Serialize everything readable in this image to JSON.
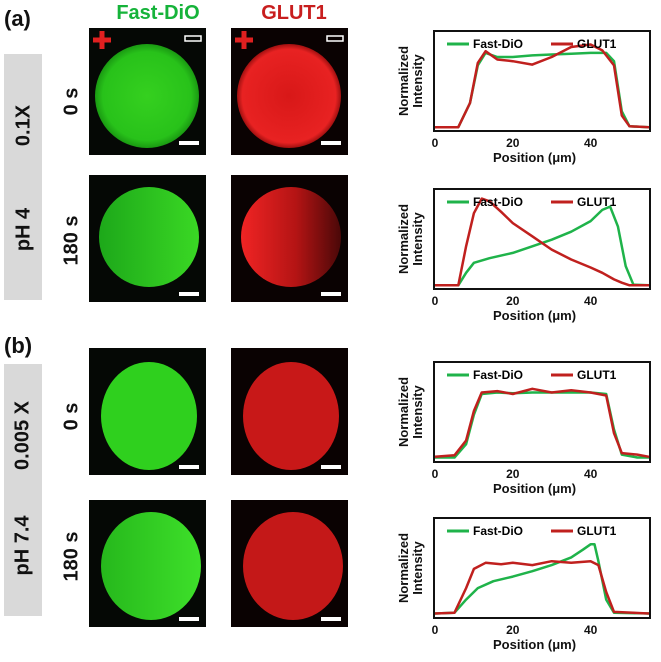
{
  "panels": [
    {
      "letter": "(a)",
      "condition_ph": "pH 4",
      "condition_conc": "0.1X",
      "rows": [
        {
          "time": "0 s"
        },
        {
          "time": "180 s"
        }
      ]
    },
    {
      "letter": "(b)",
      "condition_ph": "pH 7.4",
      "condition_conc": "0.005 X",
      "rows": [
        {
          "time": "0 s"
        },
        {
          "time": "180 s"
        }
      ]
    }
  ],
  "columns": {
    "green": "Fast-DiO",
    "red": "GLUT1"
  },
  "colors": {
    "green": "#1fb34a",
    "red": "#c0201e",
    "green_img": "#22c51e",
    "red_img": "#e01818"
  },
  "chart_data": [
    {
      "type": "line",
      "ylabel": "Normalized Intensity",
      "xlabel": "Position (μm)",
      "xticks": [
        "0",
        "20",
        "40"
      ],
      "xlim": [
        0,
        55
      ],
      "ylim": [
        0,
        1.15
      ],
      "legend": "top",
      "series": [
        {
          "name": "Fast-DiO",
          "x": [
            0,
            6,
            9,
            11,
            13,
            16,
            20,
            25,
            30,
            35,
            40,
            44,
            46,
            48,
            50,
            55
          ],
          "y": [
            0.01,
            0.01,
            0.3,
            0.75,
            0.9,
            0.85,
            0.85,
            0.87,
            0.88,
            0.89,
            0.9,
            0.9,
            0.8,
            0.2,
            0.02,
            0.01
          ]
        },
        {
          "name": "GLUT1",
          "x": [
            0,
            6,
            9,
            11,
            13,
            16,
            20,
            25,
            30,
            35,
            40,
            43,
            46,
            48,
            50,
            55
          ],
          "y": [
            0.01,
            0.01,
            0.3,
            0.78,
            0.92,
            0.82,
            0.8,
            0.76,
            0.85,
            0.97,
            1.0,
            0.93,
            0.75,
            0.15,
            0.02,
            0.01
          ]
        }
      ]
    },
    {
      "type": "line",
      "ylabel": "Normalized Intensity",
      "xlabel": "Position (μm)",
      "xticks": [
        "0",
        "20",
        "40"
      ],
      "xlim": [
        0,
        55
      ],
      "ylim": [
        0,
        1.45
      ],
      "legend": "top",
      "series": [
        {
          "name": "Fast-DiO",
          "x": [
            0,
            6,
            8,
            10,
            14,
            20,
            25,
            30,
            35,
            40,
            43,
            45,
            47,
            49,
            51,
            55
          ],
          "y": [
            0.01,
            0.01,
            0.2,
            0.35,
            0.42,
            0.5,
            0.6,
            0.7,
            0.82,
            0.98,
            1.15,
            1.2,
            0.9,
            0.3,
            0.02,
            0.01
          ]
        },
        {
          "name": "GLUT1",
          "x": [
            0,
            6,
            8,
            10,
            12,
            14,
            17,
            20,
            25,
            30,
            35,
            40,
            43,
            46,
            48,
            50,
            55
          ],
          "y": [
            0.01,
            0.01,
            0.6,
            1.1,
            1.32,
            1.28,
            1.12,
            0.95,
            0.75,
            0.55,
            0.4,
            0.28,
            0.2,
            0.1,
            0.05,
            0.01,
            0.01
          ]
        }
      ]
    },
    {
      "type": "line",
      "ylabel": "Normalized Intensity",
      "xlabel": "Position (μm)",
      "xticks": [
        "0",
        "20",
        "40"
      ],
      "xlim": [
        0,
        55
      ],
      "ylim": [
        0,
        1.3
      ],
      "legend": "top",
      "series": [
        {
          "name": "Fast-DiO",
          "x": [
            0,
            5,
            8,
            10,
            12,
            16,
            20,
            25,
            30,
            35,
            40,
            44,
            46,
            48,
            52,
            55
          ],
          "y": [
            0.02,
            0.02,
            0.2,
            0.6,
            0.88,
            0.9,
            0.89,
            0.9,
            0.9,
            0.9,
            0.9,
            0.88,
            0.4,
            0.06,
            0.02,
            0.02
          ]
        },
        {
          "name": "GLUT1",
          "x": [
            0,
            5,
            8,
            10,
            12,
            16,
            20,
            25,
            30,
            35,
            40,
            44,
            46,
            48,
            52,
            55
          ],
          "y": [
            0.03,
            0.05,
            0.25,
            0.65,
            0.9,
            0.92,
            0.88,
            0.95,
            0.9,
            0.93,
            0.9,
            0.86,
            0.35,
            0.08,
            0.06,
            0.03
          ]
        }
      ]
    },
    {
      "type": "line",
      "ylabel": "Normalized Intensity",
      "xlabel": "Position (μm)",
      "xticks": [
        "0",
        "20",
        "40"
      ],
      "xlim": [
        0,
        55
      ],
      "ylim": [
        0,
        1.25
      ],
      "legend": "top",
      "series": [
        {
          "name": "Fast-DiO",
          "x": [
            0,
            5,
            8,
            11,
            15,
            20,
            25,
            30,
            35,
            38,
            40,
            41,
            42,
            44,
            46,
            55
          ],
          "y": [
            0.02,
            0.03,
            0.2,
            0.35,
            0.44,
            0.5,
            0.57,
            0.65,
            0.75,
            0.85,
            0.92,
            0.92,
            0.7,
            0.2,
            0.03,
            0.02
          ]
        },
        {
          "name": "GLUT1",
          "x": [
            0,
            5,
            8,
            10,
            13,
            17,
            20,
            25,
            30,
            35,
            40,
            42,
            44,
            46,
            55
          ],
          "y": [
            0.02,
            0.03,
            0.35,
            0.6,
            0.68,
            0.66,
            0.68,
            0.65,
            0.7,
            0.68,
            0.7,
            0.65,
            0.3,
            0.04,
            0.02
          ]
        }
      ]
    }
  ]
}
